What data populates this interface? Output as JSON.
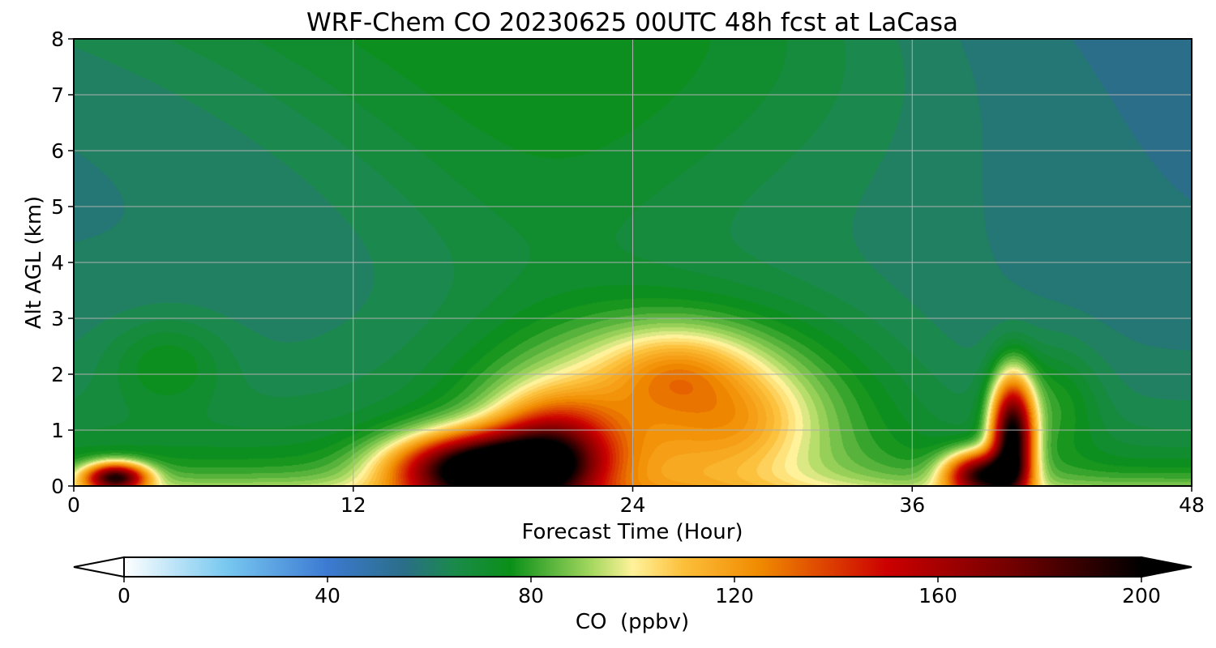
{
  "chart_data": {
    "type": "heatmap",
    "title": "WRF-Chem CO  20230625 00UTC 48h fcst at LaCasa",
    "xlabel": "Forecast Time (Hour)",
    "ylabel": "Alt AGL (km)",
    "xlim": [
      0,
      48
    ],
    "ylim": [
      0,
      8
    ],
    "xticks": [
      0,
      12,
      24,
      36,
      48
    ],
    "yticks": [
      0,
      1,
      2,
      3,
      4,
      5,
      6,
      7,
      8
    ],
    "grid": true,
    "colorbar": {
      "label": "CO  (ppbv)",
      "min": 0,
      "max": 200,
      "ticks": [
        0,
        40,
        80,
        120,
        160,
        200
      ],
      "extend": "both",
      "orientation": "horizontal",
      "palette": [
        {
          "v": 0,
          "c": "#ffffff"
        },
        {
          "v": 20,
          "c": "#78c8f0"
        },
        {
          "v": 40,
          "c": "#3c7ad2"
        },
        {
          "v": 55,
          "c": "#2a6e88"
        },
        {
          "v": 65,
          "c": "#1a8a4a"
        },
        {
          "v": 76,
          "c": "#0a9018"
        },
        {
          "v": 92,
          "c": "#a6d860"
        },
        {
          "v": 100,
          "c": "#fff29a"
        },
        {
          "v": 110,
          "c": "#fcbf3a"
        },
        {
          "v": 125,
          "c": "#f08a00"
        },
        {
          "v": 150,
          "c": "#cc0000"
        },
        {
          "v": 175,
          "c": "#700000"
        },
        {
          "v": 200,
          "c": "#000000"
        }
      ]
    },
    "field_features": {
      "background": [
        {
          "t": 48,
          "z": 7.6,
          "value": 55,
          "spread_t": 9,
          "spread_z": 2.2
        },
        {
          "t": 46,
          "z": 4.3,
          "value": 55,
          "spread_t": 6,
          "spread_z": 2.0
        },
        {
          "t": 6,
          "z": 5.2,
          "value": 58,
          "spread_t": 7,
          "spread_z": 1.4
        },
        {
          "t": 22,
          "z": 6.9,
          "value": 76,
          "spread_t": 9,
          "spread_z": 1.5
        },
        {
          "t": 34,
          "z": 5.0,
          "value": 61,
          "spread_t": 7,
          "spread_z": 1.5
        }
      ],
      "plumes": [
        {
          "t": 25.5,
          "z": 1.3,
          "value": 48,
          "spread_t": 7,
          "spread_z": 1.6
        },
        {
          "t": 26,
          "z": 2.1,
          "value": 22,
          "spread_t": 3,
          "spread_z": 0.7
        },
        {
          "t": 17.5,
          "z": 0.3,
          "value": 140,
          "spread_t": 3.5,
          "spread_z": 0.6
        },
        {
          "t": 20.5,
          "z": 0.6,
          "value": 70,
          "spread_t": 2.5,
          "spread_z": 0.9
        },
        {
          "t": 29,
          "z": 1.2,
          "value": 12,
          "spread_t": 2.5,
          "spread_z": 0.8
        },
        {
          "t": 40.3,
          "z": 0.9,
          "value": 130,
          "spread_t": 0.9,
          "spread_z": 1.0
        },
        {
          "t": 39,
          "z": 0.2,
          "value": 110,
          "spread_t": 1.5,
          "spread_z": 0.4
        },
        {
          "t": 1.8,
          "z": 0.15,
          "value": 110,
          "spread_t": 1.3,
          "spread_z": 0.25
        },
        {
          "t": 4,
          "z": 2.2,
          "value": 12,
          "spread_t": 2.5,
          "spread_z": 0.8
        },
        {
          "t": 42,
          "z": 1.5,
          "value": 15,
          "spread_t": 2,
          "spread_z": 1.0
        }
      ],
      "surface_layer": {
        "value": 28,
        "depth_km": 0.3
      }
    }
  }
}
